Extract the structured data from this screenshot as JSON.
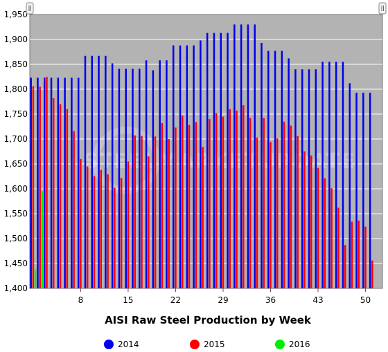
{
  "watermark": {
    "text": "STEELMARKETUPDATE"
  },
  "colors": {
    "plot_bg": "#b3b3b3",
    "grid": "#ffffff"
  },
  "chart_data": {
    "type": "bar",
    "title": "AISI Raw Steel Production by Week",
    "xlabel": "AISI Raw Steel Production by Week",
    "ylabel": "",
    "ylim": [
      1400,
      1950
    ],
    "yticks": [
      "1,400",
      "1,450",
      "1,500",
      "1,550",
      "1,600",
      "1,650",
      "1,700",
      "1,750",
      "1,800",
      "1,850",
      "1,900",
      "1,950"
    ],
    "ytick_values": [
      1400,
      1450,
      1500,
      1550,
      1600,
      1650,
      1700,
      1750,
      1800,
      1850,
      1900,
      1950
    ],
    "xticks": [
      8,
      15,
      22,
      29,
      36,
      43,
      50
    ],
    "grid": true,
    "legend_position": "bottom",
    "categories": [
      1,
      2,
      3,
      4,
      5,
      6,
      7,
      8,
      9,
      10,
      11,
      12,
      13,
      14,
      15,
      16,
      17,
      18,
      19,
      20,
      21,
      22,
      23,
      24,
      25,
      26,
      27,
      28,
      29,
      30,
      31,
      32,
      33,
      34,
      35,
      36,
      37,
      38,
      39,
      40,
      41,
      42,
      43,
      44,
      45,
      46,
      47,
      48,
      49,
      50,
      51,
      52
    ],
    "series": [
      {
        "name": "2014",
        "color": "#0000ee",
        "values": [
          1823,
          1823,
          1823,
          1823,
          1823,
          1823,
          1823,
          1823,
          1867,
          1867,
          1867,
          1867,
          1852,
          1841,
          1841,
          1841,
          1841,
          1858,
          1838,
          1858,
          1858,
          1888,
          1888,
          1888,
          1888,
          1898,
          1913,
          1913,
          1913,
          1913,
          1930,
          1930,
          1930,
          1930,
          1893,
          1877,
          1877,
          1877,
          1862,
          1840,
          1840,
          1840,
          1840,
          1855,
          1855,
          1855,
          1855,
          1812,
          1793,
          1793,
          1793,
          null
        ]
      },
      {
        "name": "2015",
        "color": "#ff0000",
        "values": [
          1806,
          1805,
          1825,
          1782,
          1770,
          1760,
          1716,
          1660,
          1645,
          1625,
          1638,
          1629,
          1602,
          1622,
          1655,
          1707,
          1706,
          1665,
          1705,
          1732,
          1700,
          1723,
          1747,
          1728,
          1734,
          1684,
          1740,
          1752,
          1745,
          1760,
          1757,
          1768,
          1742,
          1703,
          1742,
          1694,
          1701,
          1735,
          1727,
          1706,
          1675,
          1667,
          1642,
          1621,
          1601,
          1562,
          1487,
          1534,
          1536,
          1524,
          1456,
          null
        ]
      },
      {
        "name": "2016",
        "color": "#00ee00",
        "values": [
          1438,
          1595,
          null,
          null,
          null,
          null,
          null,
          null,
          null,
          null,
          null,
          null,
          null,
          null,
          null,
          null,
          null,
          null,
          null,
          null,
          null,
          null,
          null,
          null,
          null,
          null,
          null,
          null,
          null,
          null,
          null,
          null,
          null,
          null,
          null,
          null,
          null,
          null,
          null,
          null,
          null,
          null,
          null,
          null,
          null,
          null,
          null,
          null,
          null,
          null,
          null,
          null
        ]
      }
    ]
  }
}
